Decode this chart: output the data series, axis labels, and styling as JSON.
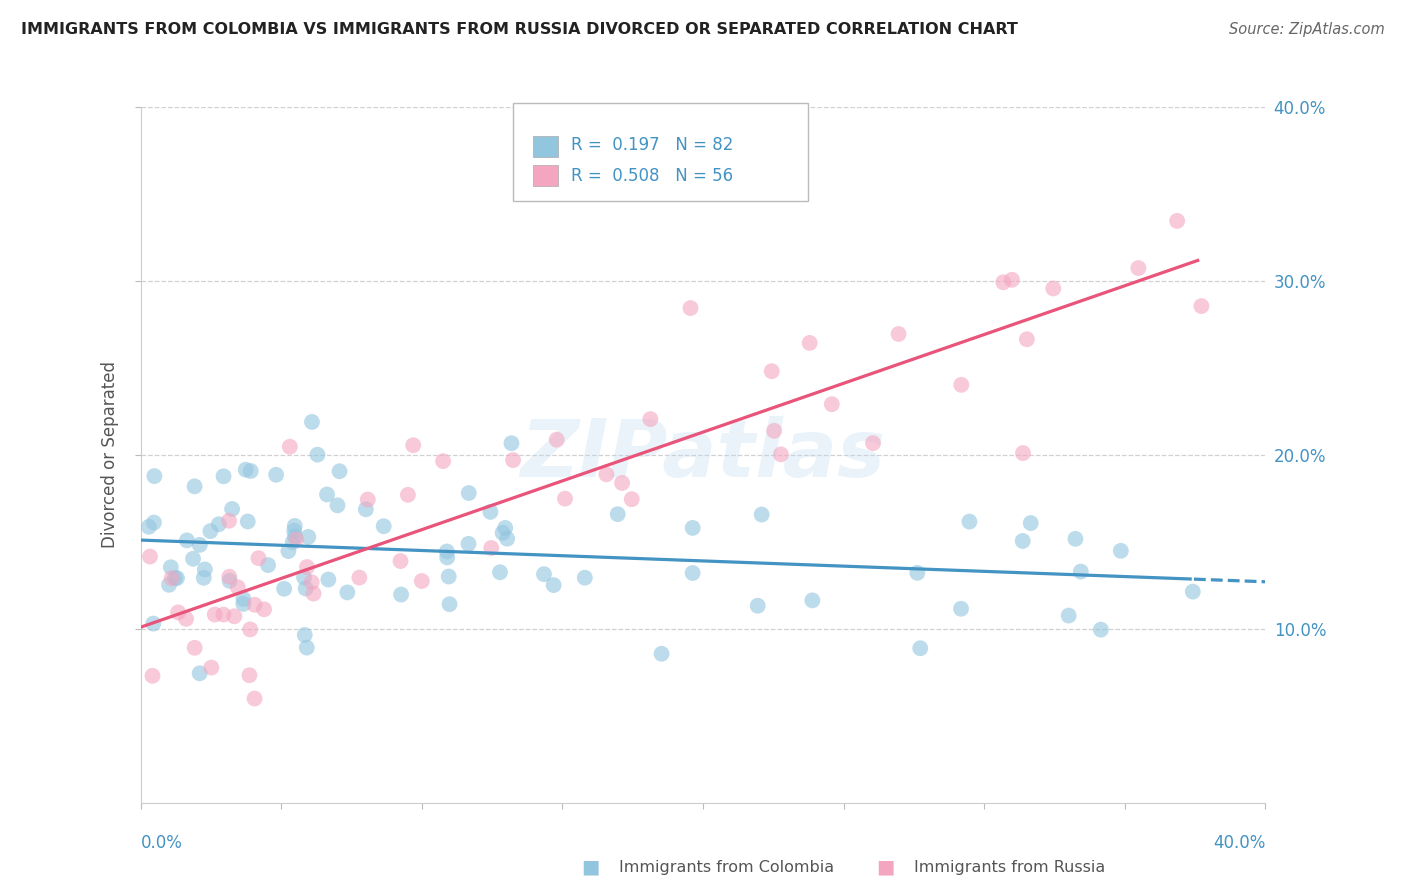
{
  "title": "IMMIGRANTS FROM COLOMBIA VS IMMIGRANTS FROM RUSSIA DIVORCED OR SEPARATED CORRELATION CHART",
  "source": "Source: ZipAtlas.com",
  "ylabel": "Divorced or Separated",
  "legend1_label": "Immigrants from Colombia",
  "legend2_label": "Immigrants from Russia",
  "r1": 0.197,
  "n1": 82,
  "r2": 0.508,
  "n2": 56,
  "color1": "#92c5de",
  "color2": "#f4a6c0",
  "line1_color": "#4393c3",
  "line2_color": "#e8547a",
  "watermark": "ZIPatlas",
  "xlim": [
    0.0,
    0.4
  ],
  "ylim": [
    0.0,
    0.4
  ],
  "background": "#ffffff",
  "ytick_labels": [
    "10.0%",
    "20.0%",
    "30.0%",
    "40.0%"
  ],
  "ytick_values": [
    0.1,
    0.2,
    0.3,
    0.4
  ],
  "xtick_left_label": "0.0%",
  "xtick_right_label": "40.0%"
}
